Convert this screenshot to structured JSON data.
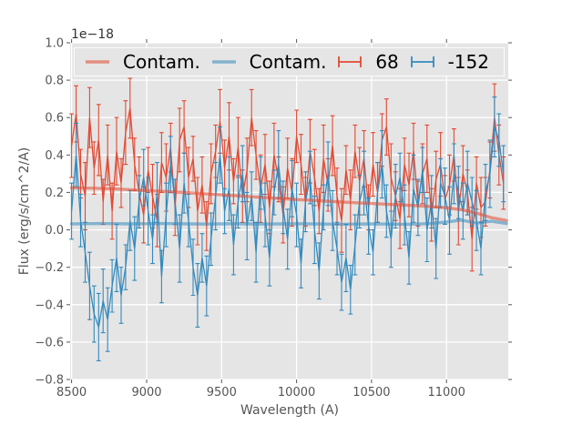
{
  "figure": {
    "background": "#ffffff",
    "axes_background": "#e5e5e5",
    "grid_color": "#ffffff",
    "tick_color": "#555555",
    "label_color": "#555555",
    "legend_background": "#e5e5e5",
    "legend_text_color": "#000000"
  },
  "chart_data": {
    "type": "line",
    "title": "",
    "xlabel": "Wavelength (A)",
    "ylabel": "Flux (erg/s/cm^2/A)",
    "offset_text": "1e−18",
    "xlim": [
      8490,
      11412
    ],
    "ylim": [
      -0.8,
      1.0
    ],
    "grid": true,
    "legend_position": "upper center horizontal",
    "xticks": [
      8500,
      9000,
      9500,
      10000,
      10500,
      11000
    ],
    "xtick_labels": [
      "8500",
      "9000",
      "9500",
      "10000",
      "10500",
      "11000"
    ],
    "yticks": [
      1.0,
      0.8,
      0.6,
      0.4,
      0.2,
      0.0,
      -0.2,
      -0.4,
      -0.6,
      -0.8
    ],
    "ytick_labels": [
      "1.0",
      "0.8",
      "0.6",
      "0.4",
      "0.2",
      "0.0",
      "−0.2",
      "−0.4",
      "−0.6",
      "−0.8"
    ],
    "series": [
      {
        "name": "Contam.",
        "type": "line",
        "color": "#E24A33",
        "alpha": 0.55,
        "linewidth": 3.4,
        "x": [
          8500,
          8600,
          8700,
          8800,
          8900,
          9000,
          9100,
          9200,
          9300,
          9400,
          9500,
          9600,
          9700,
          9800,
          9900,
          10000,
          10100,
          10200,
          10300,
          10400,
          10500,
          10600,
          10700,
          10800,
          10900,
          11000,
          11100,
          11200,
          11300,
          11400
        ],
        "y": [
          0.225,
          0.223,
          0.221,
          0.218,
          0.214,
          0.21,
          0.206,
          0.202,
          0.197,
          0.192,
          0.187,
          0.182,
          0.177,
          0.172,
          0.167,
          0.162,
          0.158,
          0.153,
          0.149,
          0.145,
          0.141,
          0.137,
          0.133,
          0.129,
          0.124,
          0.118,
          0.108,
          0.09,
          0.065,
          0.05
        ]
      },
      {
        "name": "Contam.",
        "type": "line",
        "color": "#348ABD",
        "alpha": 0.55,
        "linewidth": 3.4,
        "x": [
          8500,
          8600,
          8700,
          8800,
          8900,
          9000,
          9100,
          9200,
          9300,
          9400,
          9500,
          9600,
          9700,
          9800,
          9900,
          10000,
          10100,
          10200,
          10300,
          10400,
          10500,
          10600,
          10700,
          10800,
          10900,
          11000,
          11100,
          11200,
          11300,
          11400
        ],
        "y": [
          0.032,
          0.033,
          0.034,
          0.033,
          0.032,
          0.033,
          0.034,
          0.033,
          0.032,
          0.031,
          0.032,
          0.033,
          0.032,
          0.031,
          0.032,
          0.033,
          0.032,
          0.031,
          0.03,
          0.031,
          0.032,
          0.031,
          0.03,
          0.031,
          0.034,
          0.042,
          0.052,
          0.036,
          0.046,
          0.034
        ]
      },
      {
        "name": "68",
        "type": "errorbar",
        "color": "#E24A33",
        "alpha": 1.0,
        "linewidth": 1.3,
        "x": [
          8500,
          8530,
          8560,
          8590,
          8620,
          8650,
          8680,
          8710,
          8740,
          8770,
          8800,
          8830,
          8860,
          8890,
          8920,
          8950,
          8980,
          9010,
          9040,
          9070,
          9100,
          9130,
          9160,
          9190,
          9220,
          9250,
          9280,
          9310,
          9340,
          9370,
          9400,
          9430,
          9460,
          9490,
          9520,
          9550,
          9580,
          9610,
          9640,
          9670,
          9700,
          9730,
          9760,
          9790,
          9820,
          9850,
          9880,
          9910,
          9940,
          9970,
          10000,
          10030,
          10060,
          10090,
          10120,
          10150,
          10180,
          10210,
          10240,
          10270,
          10300,
          10330,
          10360,
          10390,
          10420,
          10450,
          10480,
          10510,
          10540,
          10570,
          10600,
          10630,
          10660,
          10690,
          10720,
          10750,
          10780,
          10810,
          10840,
          10870,
          10900,
          10930,
          10960,
          10990,
          11020,
          11050,
          11080,
          11110,
          11140,
          11170,
          11200,
          11230,
          11260,
          11290,
          11320,
          11350,
          11380
        ],
        "y": [
          0.45,
          0.62,
          0.3,
          0.18,
          0.6,
          0.33,
          0.48,
          0.15,
          0.4,
          0.1,
          0.42,
          0.25,
          0.52,
          0.65,
          0.35,
          0.2,
          0.08,
          0.32,
          0.18,
          0.05,
          0.36,
          0.28,
          0.44,
          0.12,
          0.48,
          0.55,
          0.28,
          0.38,
          0.1,
          0.24,
          0.02,
          0.3,
          0.42,
          0.58,
          0.33,
          0.5,
          0.26,
          0.44,
          0.18,
          0.32,
          0.6,
          0.4,
          0.22,
          0.35,
          0.12,
          0.4,
          0.27,
          0.08,
          0.33,
          0.2,
          0.5,
          0.35,
          0.15,
          0.42,
          0.28,
          0.1,
          0.38,
          0.24,
          0.45,
          0.18,
          0.05,
          0.32,
          0.16,
          0.42,
          0.26,
          0.38,
          0.12,
          0.35,
          0.2,
          0.48,
          0.55,
          0.28,
          0.18,
          0.06,
          0.35,
          0.24,
          0.42,
          0.14,
          0.3,
          0.38,
          0.08,
          0.27,
          0.35,
          0.16,
          0.24,
          0.4,
          0.1,
          0.3,
          0.2,
          -0.05,
          0.25,
          0.12,
          0.15,
          0.32,
          0.6,
          0.4,
          0.25
        ],
        "yerr": [
          0.17,
          0.15,
          0.13,
          0.18,
          0.16,
          0.14,
          0.19,
          0.12,
          0.16,
          0.15,
          0.18,
          0.13,
          0.17,
          0.16,
          0.14,
          0.19,
          0.15,
          0.12,
          0.17,
          0.14,
          0.16,
          0.18,
          0.13,
          0.15,
          0.17,
          0.14,
          0.16,
          0.12,
          0.18,
          0.15,
          0.13,
          0.16,
          0.14,
          0.17,
          0.15,
          0.18,
          0.12,
          0.16,
          0.14,
          0.17,
          0.15,
          0.13,
          0.18,
          0.16,
          0.14,
          0.17,
          0.12,
          0.15,
          0.16,
          0.18,
          0.14,
          0.16,
          0.13,
          0.17,
          0.15,
          0.12,
          0.18,
          0.14,
          0.16,
          0.15,
          0.17,
          0.13,
          0.16,
          0.14,
          0.18,
          0.15,
          0.12,
          0.17,
          0.16,
          0.14,
          0.15,
          0.18,
          0.13,
          0.16,
          0.14,
          0.17,
          0.15,
          0.12,
          0.16,
          0.18,
          0.14,
          0.15,
          0.17,
          0.13,
          0.16,
          0.14,
          0.18,
          0.15,
          0.12,
          0.17,
          0.14,
          0.16,
          0.13,
          0.15,
          0.18,
          0.16,
          0.14
        ]
      },
      {
        "name": "-152",
        "type": "errorbar",
        "color": "#348ABD",
        "alpha": 1.0,
        "linewidth": 1.3,
        "x": [
          8500,
          8530,
          8560,
          8590,
          8620,
          8650,
          8680,
          8710,
          8740,
          8770,
          8800,
          8830,
          8860,
          8890,
          8920,
          8950,
          8980,
          9010,
          9040,
          9070,
          9100,
          9130,
          9160,
          9190,
          9220,
          9250,
          9280,
          9310,
          9340,
          9370,
          9400,
          9430,
          9460,
          9490,
          9520,
          9550,
          9580,
          9610,
          9640,
          9670,
          9700,
          9730,
          9760,
          9790,
          9820,
          9850,
          9880,
          9910,
          9940,
          9970,
          10000,
          10030,
          10060,
          10090,
          10120,
          10150,
          10180,
          10210,
          10240,
          10270,
          10300,
          10330,
          10360,
          10390,
          10420,
          10450,
          10480,
          10510,
          10540,
          10570,
          10600,
          10630,
          10660,
          10690,
          10720,
          10750,
          10780,
          10810,
          10840,
          10870,
          10900,
          10930,
          10960,
          10990,
          11020,
          11050,
          11080,
          11110,
          11140,
          11170,
          11200,
          11230,
          11260,
          11290,
          11320,
          11350,
          11380
        ],
        "y": [
          0.1,
          0.4,
          0.05,
          -0.12,
          -0.3,
          -0.45,
          -0.52,
          -0.38,
          -0.48,
          -0.3,
          -0.15,
          -0.35,
          -0.2,
          0.05,
          -0.1,
          0.15,
          0.28,
          0.1,
          -0.05,
          0.2,
          -0.25,
          0.08,
          0.35,
          0.15,
          -0.1,
          0.25,
          0.05,
          -0.2,
          -0.35,
          -0.15,
          -0.3,
          -0.05,
          0.18,
          0.4,
          0.1,
          0.22,
          -0.08,
          0.15,
          0.3,
          0.02,
          0.18,
          -0.12,
          0.25,
          0.08,
          -0.15,
          0.2,
          0.35,
          0.12,
          -0.05,
          0.22,
          0.08,
          -0.18,
          0.15,
          0.28,
          0.0,
          -0.22,
          0.12,
          0.3,
          0.05,
          -0.1,
          -0.28,
          -0.15,
          -0.32,
          -0.08,
          0.15,
          0.25,
          0.02,
          -0.12,
          0.2,
          0.35,
          0.1,
          -0.05,
          0.18,
          0.28,
          0.08,
          -0.15,
          0.22,
          0.12,
          0.32,
          0.0,
          0.15,
          -0.1,
          0.25,
          0.18,
          0.05,
          0.3,
          0.2,
          0.1,
          0.25,
          0.15,
          0.05,
          -0.1,
          0.2,
          0.3,
          0.55,
          0.48,
          0.3
        ],
        "yerr": [
          0.15,
          0.17,
          0.14,
          0.16,
          0.18,
          0.15,
          0.18,
          0.17,
          0.17,
          0.14,
          0.18,
          0.15,
          0.12,
          0.16,
          0.17,
          0.14,
          0.15,
          0.18,
          0.13,
          0.16,
          0.14,
          0.17,
          0.15,
          0.12,
          0.18,
          0.16,
          0.14,
          0.15,
          0.17,
          0.13,
          0.16,
          0.14,
          0.18,
          0.15,
          0.12,
          0.17,
          0.16,
          0.14,
          0.15,
          0.18,
          0.13,
          0.16,
          0.14,
          0.17,
          0.15,
          0.12,
          0.18,
          0.14,
          0.16,
          0.15,
          0.17,
          0.13,
          0.16,
          0.14,
          0.18,
          0.15,
          0.12,
          0.17,
          0.16,
          0.14,
          0.15,
          0.18,
          0.13,
          0.16,
          0.14,
          0.17,
          0.15,
          0.12,
          0.16,
          0.18,
          0.14,
          0.15,
          0.17,
          0.13,
          0.16,
          0.14,
          0.18,
          0.15,
          0.12,
          0.17,
          0.14,
          0.16,
          0.13,
          0.15,
          0.18,
          0.16,
          0.14,
          0.15,
          0.17,
          0.13,
          0.16,
          0.14,
          0.15,
          0.18,
          0.16,
          0.14,
          0.15
        ]
      }
    ]
  }
}
